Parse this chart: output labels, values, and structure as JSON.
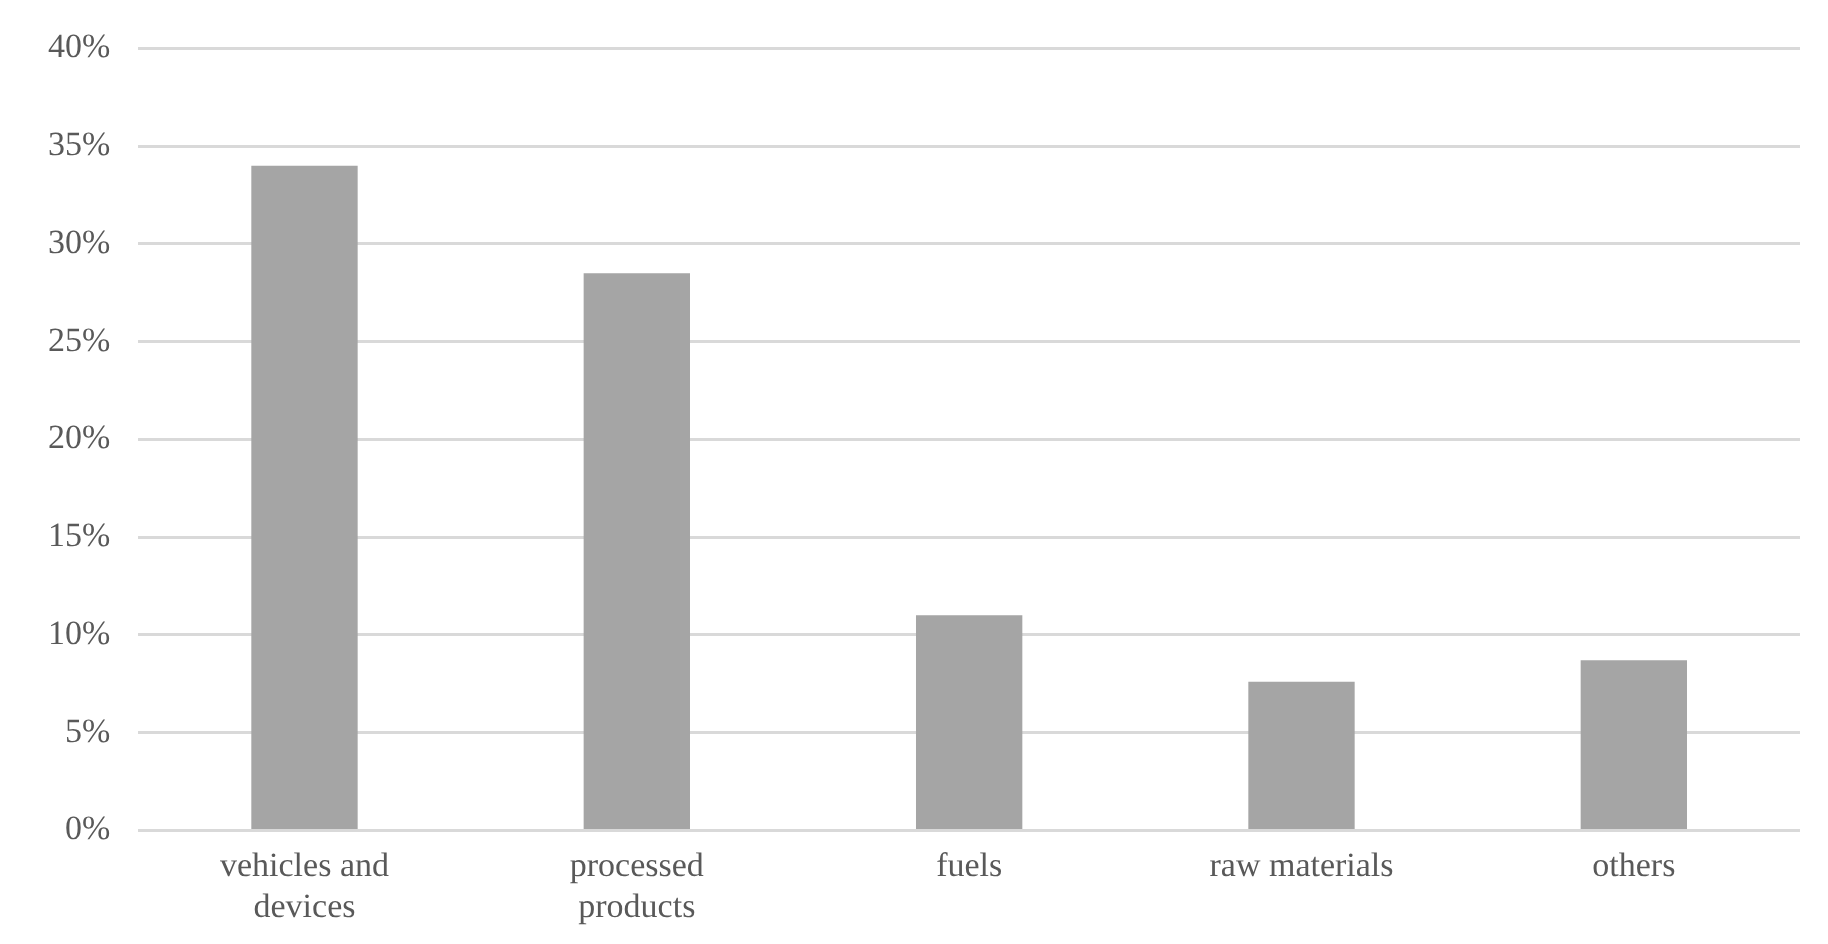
{
  "chart_data": {
    "type": "bar",
    "categories": [
      "vehicles and devices",
      "processed products",
      "fuels",
      "raw materials",
      "others"
    ],
    "values": [
      34,
      28.5,
      11,
      7.6,
      8.7
    ],
    "color": "#a5a5a5",
    "ylim": [
      0,
      40
    ],
    "yticks": [
      {
        "value": 0,
        "label": "0%"
      },
      {
        "value": 5,
        "label": "5%"
      },
      {
        "value": 10,
        "label": "10%"
      },
      {
        "value": 15,
        "label": "15%"
      },
      {
        "value": 20,
        "label": "20%"
      },
      {
        "value": 25,
        "label": "25%"
      },
      {
        "value": 30,
        "label": "30%"
      },
      {
        "value": 35,
        "label": "35%"
      },
      {
        "value": 40,
        "label": "40%"
      }
    ],
    "grid": "y",
    "legend": false
  }
}
